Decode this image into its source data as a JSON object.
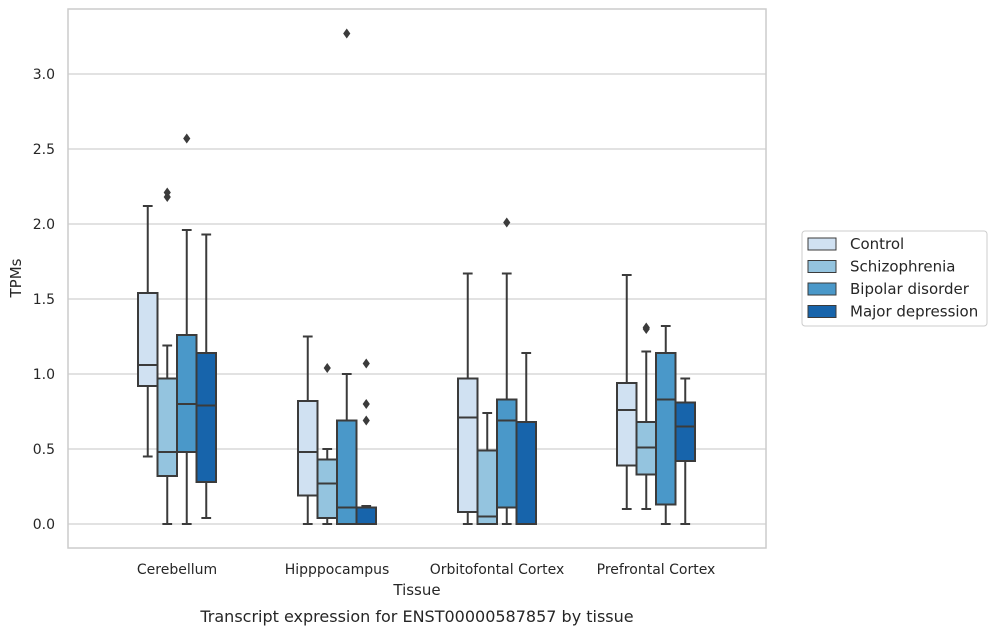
{
  "caption": "Transcript expression for ENST00000587857 by tissue",
  "chart_data": {
    "type": "box",
    "xlabel": "Tissue",
    "ylabel": "TPMs",
    "ylim": [
      -0.16,
      3.43
    ],
    "yticks": [
      "0.0",
      "0.5",
      "1.0",
      "1.5",
      "2.0",
      "2.5",
      "3.0"
    ],
    "grid": "horizontal",
    "legend_position": "right",
    "categories": [
      "Cerebellum",
      "Hipppocampus",
      "Orbitofontal Cortex",
      "Prefrontal Cortex"
    ],
    "series": [
      {
        "name": "Control",
        "color": "#d0e1f2",
        "boxes": [
          {
            "min": 0.45,
            "q1": 0.92,
            "median": 1.06,
            "q3": 1.54,
            "max": 2.12,
            "outliers": []
          },
          {
            "min": 0.0,
            "q1": 0.19,
            "median": 0.48,
            "q3": 0.82,
            "max": 1.25,
            "outliers": []
          },
          {
            "min": 0.0,
            "q1": 0.08,
            "median": 0.71,
            "q3": 0.97,
            "max": 1.67,
            "outliers": []
          },
          {
            "min": 0.1,
            "q1": 0.39,
            "median": 0.76,
            "q3": 0.94,
            "max": 1.66,
            "outliers": []
          }
        ]
      },
      {
        "name": "Schizophrenia",
        "color": "#94c4df",
        "boxes": [
          {
            "min": 0.0,
            "q1": 0.32,
            "median": 0.48,
            "q3": 0.97,
            "max": 1.19,
            "outliers": [
              2.18,
              2.21
            ]
          },
          {
            "min": 0.0,
            "q1": 0.04,
            "median": 0.27,
            "q3": 0.43,
            "max": 0.5,
            "outliers": [
              1.04
            ]
          },
          {
            "min": 0.0,
            "q1": 0.0,
            "median": 0.05,
            "q3": 0.49,
            "max": 0.74,
            "outliers": []
          },
          {
            "min": 0.1,
            "q1": 0.33,
            "median": 0.51,
            "q3": 0.68,
            "max": 1.15,
            "outliers": [
              1.3,
              1.31
            ]
          }
        ]
      },
      {
        "name": "Bipolar disorder",
        "color": "#4a98c9",
        "boxes": [
          {
            "min": 0.0,
            "q1": 0.48,
            "median": 0.8,
            "q3": 1.26,
            "max": 1.96,
            "outliers": [
              2.57
            ]
          },
          {
            "min": 0.0,
            "q1": 0.0,
            "median": 0.11,
            "q3": 0.69,
            "max": 1.0,
            "outliers": [
              3.27
            ]
          },
          {
            "min": 0.0,
            "q1": 0.11,
            "median": 0.69,
            "q3": 0.83,
            "max": 1.67,
            "outliers": [
              2.01
            ]
          },
          {
            "min": 0.0,
            "q1": 0.13,
            "median": 0.83,
            "q3": 1.14,
            "max": 1.32,
            "outliers": []
          }
        ]
      },
      {
        "name": "Major depression",
        "color": "#1764ab",
        "boxes": [
          {
            "min": 0.04,
            "q1": 0.28,
            "median": 0.79,
            "q3": 1.14,
            "max": 1.93,
            "outliers": []
          },
          {
            "min": 0.0,
            "q1": 0.0,
            "median": 0.0,
            "q3": 0.11,
            "max": 0.12,
            "outliers": [
              0.69,
              0.8,
              1.07
            ]
          },
          {
            "min": 0.0,
            "q1": 0.0,
            "median": 0.0,
            "q3": 0.68,
            "max": 1.14,
            "outliers": []
          },
          {
            "min": 0.0,
            "q1": 0.42,
            "median": 0.65,
            "q3": 0.81,
            "max": 0.97,
            "outliers": []
          }
        ]
      }
    ]
  }
}
